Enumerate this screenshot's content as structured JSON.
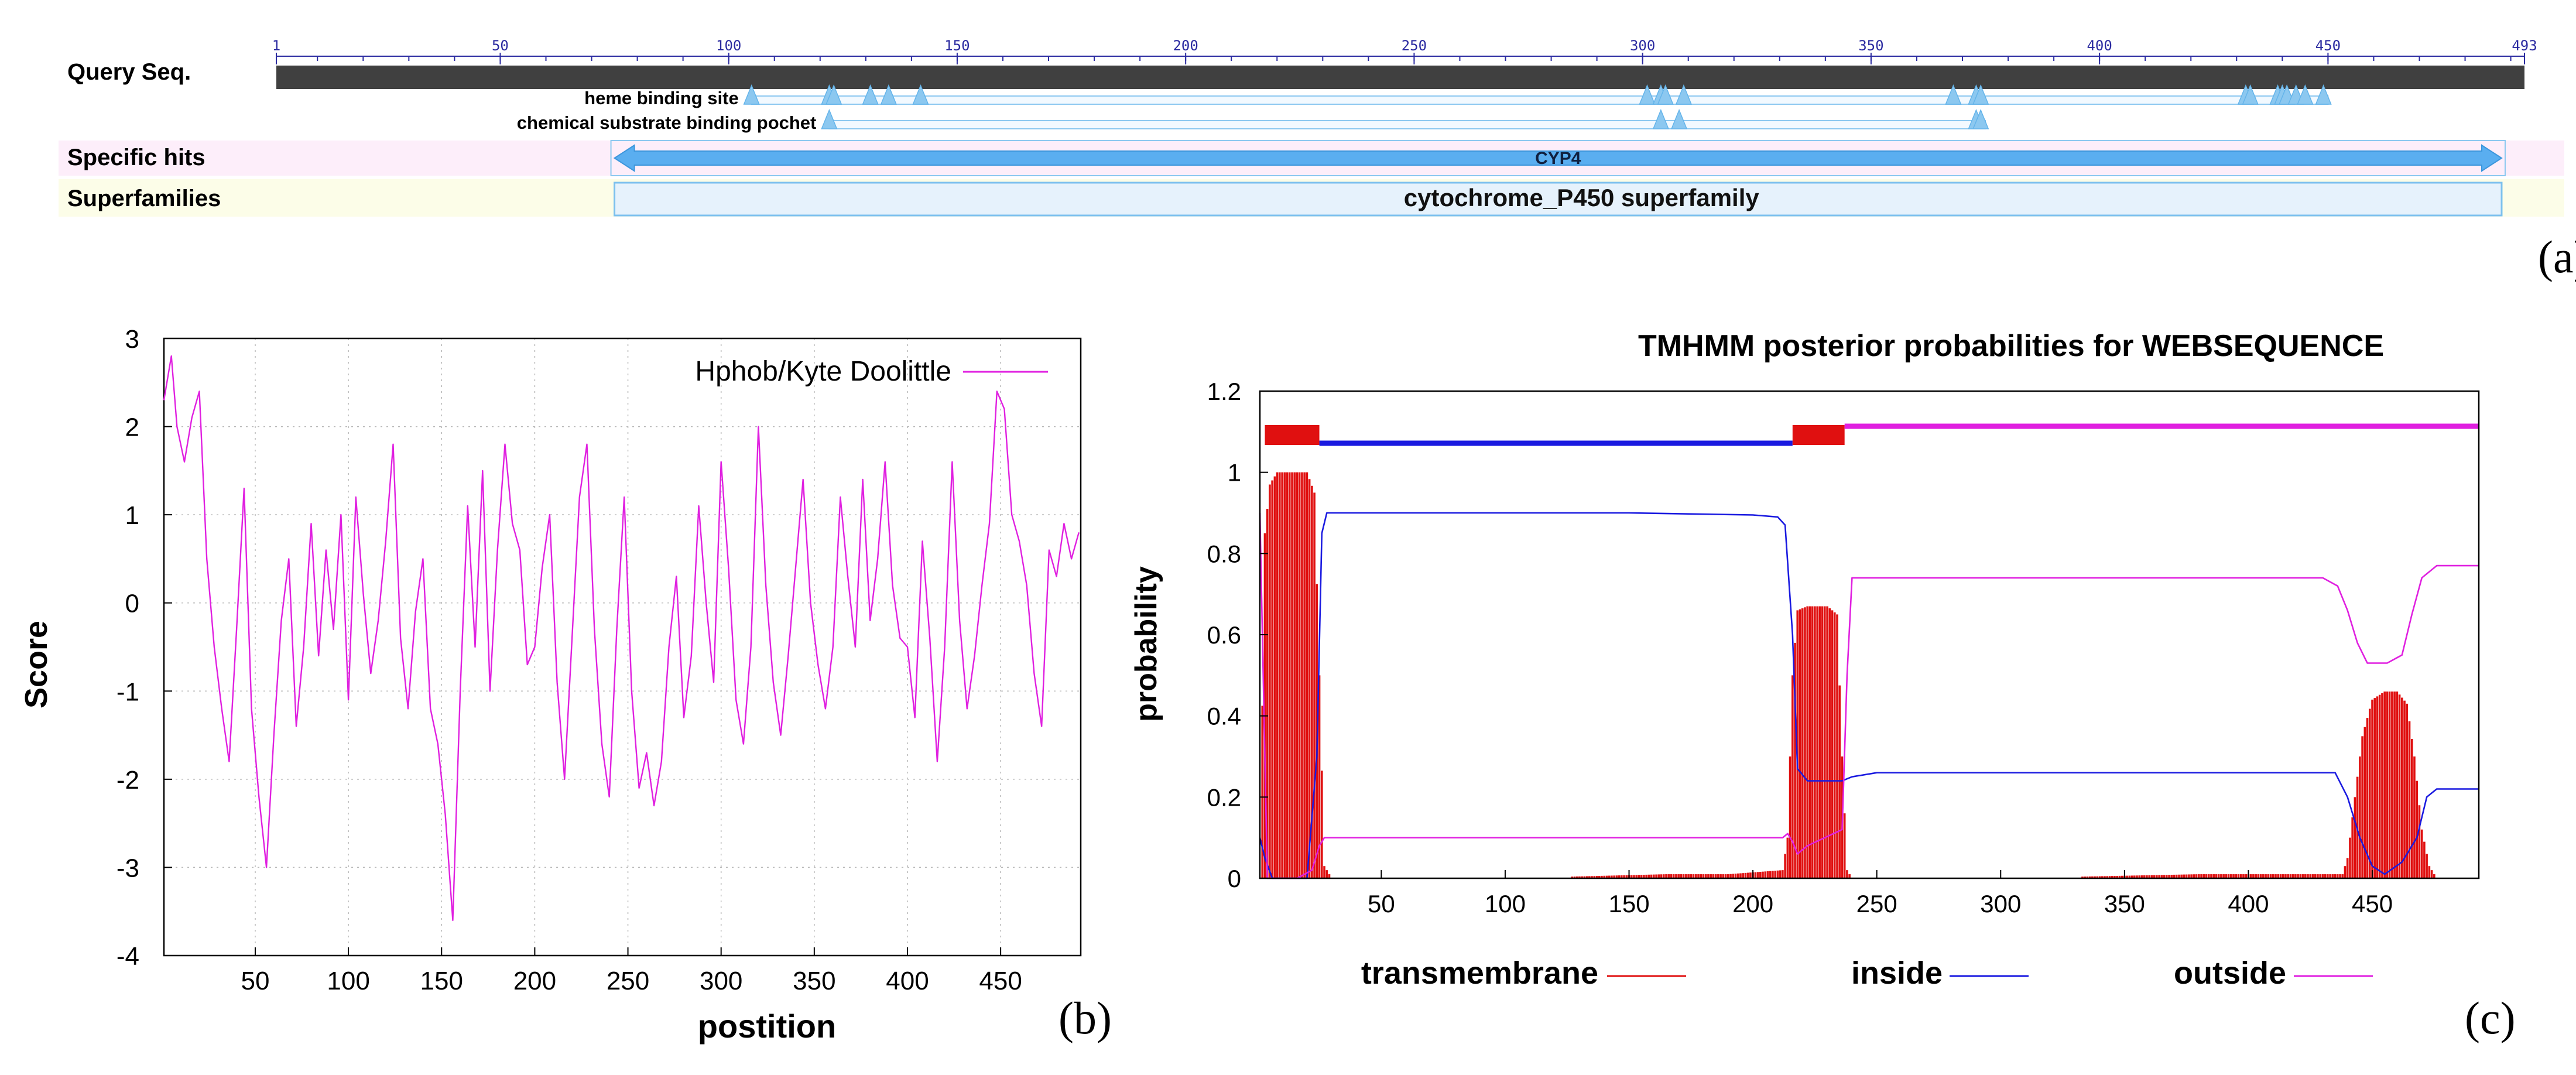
{
  "panel_a": {
    "label": "(a)",
    "row_labels": [
      "Query Seq.",
      "Specific hits",
      "Superfamilies"
    ],
    "ruler_ticks": [
      1,
      50,
      100,
      150,
      200,
      250,
      300,
      350,
      400,
      450,
      493
    ],
    "seq_length": 493,
    "site_rows": [
      {
        "name": "heme binding site",
        "start": 105,
        "end": 450,
        "sites": [
          105,
          122,
          123,
          131,
          135,
          142,
          301,
          304,
          305,
          309,
          368,
          373,
          374,
          432,
          433,
          439,
          440,
          441,
          443,
          445,
          449
        ]
      },
      {
        "name": "chemical substrate binding pochet",
        "start": 122,
        "end": 375,
        "sites": [
          122,
          304,
          308,
          373,
          374
        ]
      }
    ],
    "specific_hit": {
      "name": "CYP4",
      "start": 75,
      "end": 488
    },
    "superfamily": {
      "name": "cytochrome_P450 superfamily",
      "start": 75,
      "end": 488
    },
    "colors": {
      "query_bar": "#404040",
      "hit": "#5aaef0",
      "superfamily_fill": "#e6f2fc",
      "site": "#8cc8f0",
      "row_pink": "#fdeefa",
      "row_yellow": "#fcfde8"
    }
  },
  "chart_data": [
    {
      "panel": "(b)",
      "type": "line",
      "title": "",
      "xlabel": "postition",
      "ylabel": "Score",
      "xlim": [
        1,
        493
      ],
      "ylim": [
        -4,
        3
      ],
      "xticks": [
        50,
        100,
        150,
        200,
        250,
        300,
        350,
        400,
        450
      ],
      "yticks": [
        -4,
        -3,
        -2,
        -1,
        0,
        1,
        2,
        3
      ],
      "grid": true,
      "legend_position": "top-right",
      "series": [
        {
          "name": "Hphob/Kyte Doolittle",
          "color": "#e020e0",
          "x": [
            1,
            5,
            8,
            12,
            16,
            20,
            24,
            28,
            32,
            36,
            40,
            44,
            48,
            52,
            56,
            60,
            64,
            68,
            72,
            76,
            80,
            84,
            88,
            92,
            96,
            100,
            104,
            108,
            112,
            116,
            120,
            124,
            128,
            132,
            136,
            140,
            144,
            148,
            152,
            156,
            160,
            164,
            168,
            172,
            176,
            180,
            184,
            188,
            192,
            196,
            200,
            204,
            208,
            212,
            216,
            220,
            224,
            228,
            232,
            236,
            240,
            244,
            248,
            252,
            256,
            260,
            264,
            268,
            272,
            276,
            280,
            284,
            288,
            292,
            296,
            300,
            304,
            308,
            312,
            316,
            320,
            324,
            328,
            332,
            336,
            340,
            344,
            348,
            352,
            356,
            360,
            364,
            368,
            372,
            376,
            380,
            384,
            388,
            392,
            396,
            400,
            404,
            408,
            412,
            416,
            420,
            424,
            428,
            432,
            436,
            440,
            444,
            448,
            452,
            456,
            460,
            464,
            468,
            472,
            476,
            480,
            484,
            488,
            492
          ],
          "y": [
            2.3,
            2.8,
            2.0,
            1.6,
            2.1,
            2.4,
            0.5,
            -0.5,
            -1.2,
            -1.8,
            -0.3,
            1.3,
            -1.2,
            -2.2,
            -3.0,
            -1.5,
            -0.2,
            0.5,
            -1.4,
            -0.5,
            0.9,
            -0.6,
            0.6,
            -0.3,
            1.0,
            -1.1,
            1.2,
            0.1,
            -0.8,
            -0.2,
            0.7,
            1.8,
            -0.4,
            -1.2,
            -0.1,
            0.5,
            -1.2,
            -1.6,
            -2.4,
            -3.6,
            -1.0,
            1.1,
            -0.5,
            1.5,
            -1.0,
            0.6,
            1.8,
            0.9,
            0.6,
            -0.7,
            -0.5,
            0.4,
            1.0,
            -0.9,
            -2.0,
            -0.4,
            1.2,
            1.8,
            -0.3,
            -1.6,
            -2.2,
            -0.3,
            1.2,
            -1.0,
            -2.1,
            -1.7,
            -2.3,
            -1.8,
            -0.5,
            0.3,
            -1.3,
            -0.6,
            1.1,
            0.0,
            -0.9,
            1.6,
            0.4,
            -1.1,
            -1.6,
            -0.5,
            2.0,
            0.2,
            -0.9,
            -1.5,
            -0.6,
            0.4,
            1.4,
            0.0,
            -0.7,
            -1.2,
            -0.5,
            1.2,
            0.3,
            -0.5,
            1.4,
            -0.2,
            0.5,
            1.6,
            0.2,
            -0.4,
            -0.5,
            -1.3,
            0.7,
            -0.4,
            -1.8,
            -0.5,
            1.6,
            -0.2,
            -1.2,
            -0.6,
            0.2,
            0.9,
            2.4,
            2.2,
            1.0,
            0.7,
            0.2,
            -0.8,
            -1.4,
            0.6,
            0.3,
            0.9,
            0.5,
            0.8
          ]
        }
      ]
    },
    {
      "panel": "(c)",
      "type": "line",
      "title": "TMHMM posterior probabilities for WEBSEQUENCE",
      "xlabel": "",
      "ylabel": "probability",
      "xlim": [
        1,
        493
      ],
      "ylim": [
        0,
        1.2
      ],
      "xticks": [
        50,
        100,
        150,
        200,
        250,
        300,
        350,
        400,
        450
      ],
      "yticks": [
        0,
        0.2,
        0.4,
        0.6,
        0.8,
        1,
        1.2
      ],
      "yticklabels": [
        "0",
        "0.2",
        "0.4",
        "0.6",
        "0.8",
        "1",
        "1.2"
      ],
      "grid": false,
      "legend_position": "bottom",
      "topology": [
        {
          "type": "transmembrane",
          "start": 3,
          "end": 25
        },
        {
          "type": "inside",
          "start": 25,
          "end": 216
        },
        {
          "type": "transmembrane",
          "start": 216,
          "end": 237
        },
        {
          "type": "outside",
          "start": 237,
          "end": 493
        }
      ],
      "series": [
        {
          "name": "transmembrane",
          "color": "#e01010",
          "style": "bars",
          "x": [
            1,
            3,
            5,
            8,
            12,
            16,
            20,
            23,
            25,
            27,
            30,
            100,
            165,
            190,
            212,
            214,
            216,
            218,
            222,
            226,
            230,
            234,
            236,
            238,
            240,
            300,
            380,
            390,
            438,
            440,
            443,
            446,
            450,
            455,
            460,
            464,
            467,
            470,
            473,
            476,
            493
          ],
          "y": [
            0,
            0.85,
            0.97,
            1.0,
            1.0,
            1.0,
            1.0,
            0.95,
            0.5,
            0.03,
            0,
            0,
            0.01,
            0.01,
            0.02,
            0.1,
            0.5,
            0.66,
            0.67,
            0.67,
            0.67,
            0.65,
            0.3,
            0.02,
            0,
            0,
            0.01,
            0.01,
            0.01,
            0.05,
            0.2,
            0.35,
            0.44,
            0.46,
            0.46,
            0.43,
            0.3,
            0.12,
            0.03,
            0,
            0
          ]
        },
        {
          "name": "inside",
          "color": "#1a1ae0",
          "x": [
            1,
            3,
            6,
            12,
            20,
            24,
            26,
            28,
            100,
            150,
            200,
            210,
            213,
            216,
            218,
            222,
            236,
            240,
            250,
            300,
            400,
            435,
            440,
            445,
            450,
            455,
            462,
            468,
            472,
            476,
            493
          ],
          "y": [
            0.1,
            0.05,
            0.0,
            0.0,
            0.0,
            0.3,
            0.85,
            0.9,
            0.9,
            0.9,
            0.895,
            0.89,
            0.87,
            0.6,
            0.27,
            0.24,
            0.24,
            0.25,
            0.26,
            0.26,
            0.26,
            0.26,
            0.2,
            0.1,
            0.03,
            0.01,
            0.04,
            0.1,
            0.2,
            0.22,
            0.22
          ]
        },
        {
          "name": "outside",
          "color": "#e020e0",
          "x": [
            1,
            4,
            8,
            16,
            22,
            25,
            27,
            100,
            200,
            212,
            214,
            216,
            218,
            222,
            236,
            238,
            240,
            300,
            400,
            430,
            436,
            440,
            444,
            448,
            456,
            462,
            466,
            470,
            476,
            493
          ],
          "y": [
            0.9,
            0.0,
            0.0,
            0.0,
            0.02,
            0.08,
            0.1,
            0.1,
            0.1,
            0.1,
            0.11,
            0.09,
            0.06,
            0.08,
            0.12,
            0.5,
            0.74,
            0.74,
            0.74,
            0.74,
            0.72,
            0.66,
            0.58,
            0.53,
            0.53,
            0.55,
            0.65,
            0.74,
            0.77,
            0.77
          ]
        }
      ],
      "legend": [
        "transmembrane",
        "inside",
        "outside"
      ]
    }
  ],
  "panel_labels": {
    "b": "(b)",
    "c": "(c)"
  }
}
